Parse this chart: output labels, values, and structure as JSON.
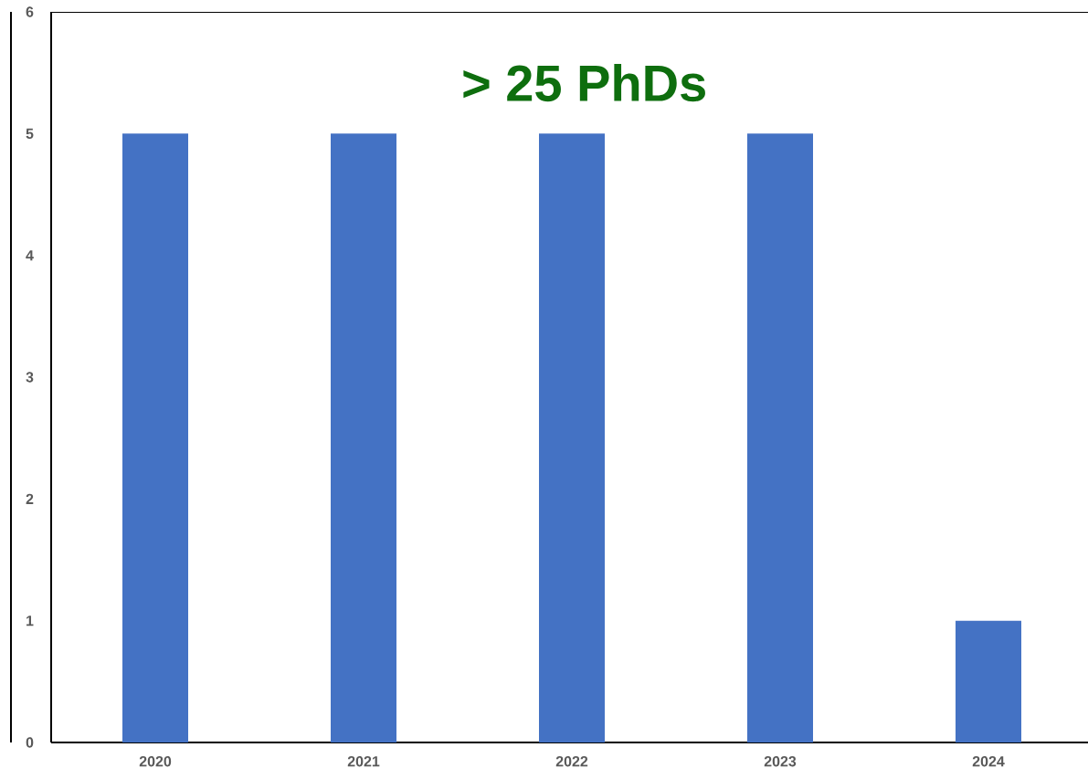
{
  "chart_data": {
    "type": "bar",
    "categories": [
      "2020",
      "2021",
      "2022",
      "2023",
      "2024"
    ],
    "values": [
      5,
      5,
      5,
      5,
      1
    ],
    "color": "#4472c4",
    "ylim": [
      0,
      6
    ],
    "yticks": [
      0,
      1,
      2,
      3,
      4,
      5,
      6
    ],
    "annotations": [
      "> 25 PhDs"
    ]
  }
}
